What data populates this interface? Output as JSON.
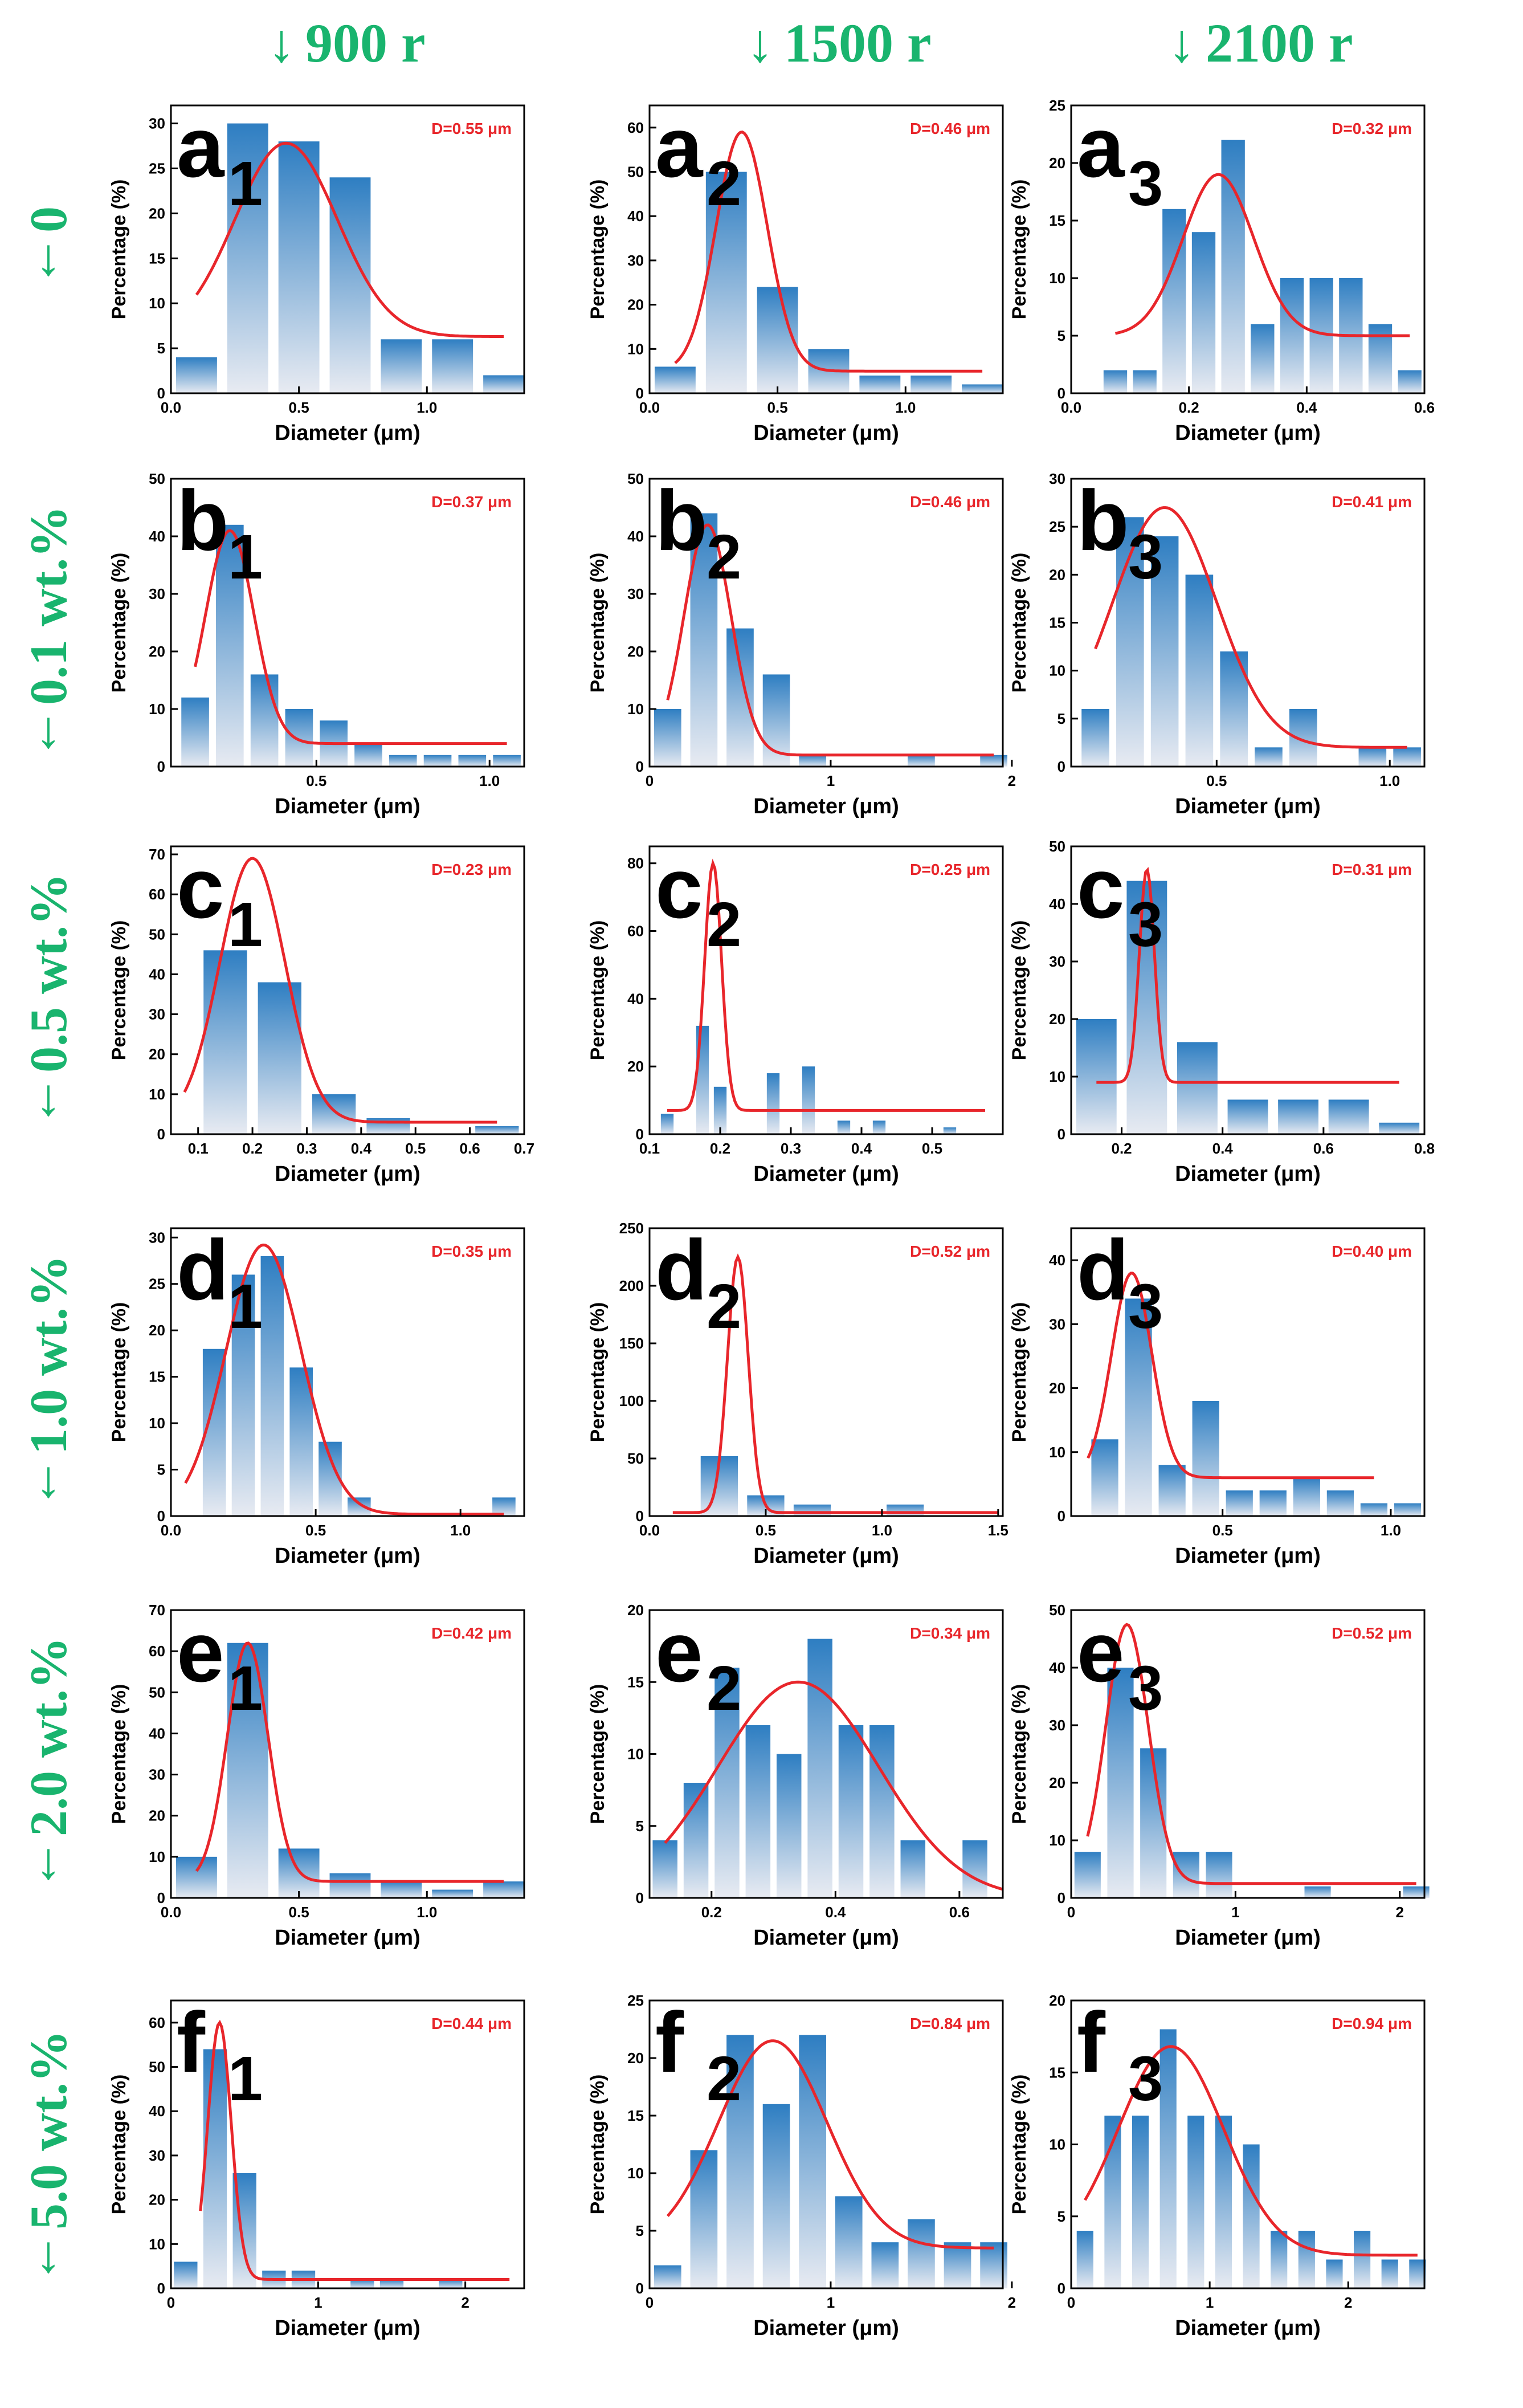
{
  "columns": [
    {
      "arrow": "↓",
      "label": "900 r"
    },
    {
      "arrow": "↓",
      "label": "1500 r"
    },
    {
      "arrow": "↓",
      "label": "2100 r"
    }
  ],
  "rows": [
    {
      "arrow": "↓",
      "label": "0"
    },
    {
      "arrow": "↓",
      "label": "0.1 wt.%"
    },
    {
      "arrow": "↓",
      "label": "0.5 wt.%"
    },
    {
      "arrow": "↓",
      "label": "1.0 wt.%"
    },
    {
      "arrow": "↓",
      "label": "2.0 wt.%"
    },
    {
      "arrow": "↓",
      "label": "5.0 wt.%"
    }
  ],
  "colors": {
    "label_green": "#19b46e",
    "fit_red": "#e8262b",
    "bar_top": "#2e7ec2",
    "bar_bottom": "#e8ebf2",
    "annotation_red": "#e8262b"
  },
  "chart_data": [
    {
      "type": "bar",
      "panel_letter": "a",
      "panel_sub": "1",
      "annotation": "D=0.55 μm",
      "xlabel": "Diameter (μm)",
      "ylabel": "Percentage (%)",
      "xlim": [
        0,
        1.38
      ],
      "ylim": [
        0,
        32
      ],
      "xticks": [
        0,
        0.5,
        1.0
      ],
      "xtick_labels": [
        "0.0",
        "0.5",
        "1.0"
      ],
      "yticks": [
        0,
        5,
        10,
        15,
        20,
        25,
        30
      ],
      "bar_width": 0.16,
      "x": [
        0.1,
        0.3,
        0.5,
        0.7,
        0.9,
        1.1,
        1.3
      ],
      "values": [
        4,
        30,
        28,
        24,
        6,
        6,
        2
      ],
      "fit": {
        "center": 0.45,
        "sigma": 0.2,
        "amplitude": 21.5,
        "baseline": 6.3,
        "x_range": [
          0.1,
          1.3
        ]
      }
    },
    {
      "type": "bar",
      "panel_letter": "a",
      "panel_sub": "2",
      "annotation": "D=0.46 μm",
      "xlabel": "Diameter (μm)",
      "ylabel": "Percentage (%)",
      "xlim": [
        0,
        1.38
      ],
      "ylim": [
        0,
        65
      ],
      "xticks": [
        0,
        0.5,
        1.0
      ],
      "xtick_labels": [
        "0.0",
        "0.5",
        "1.0"
      ],
      "yticks": [
        0,
        10,
        20,
        30,
        40,
        50,
        60
      ],
      "bar_width": 0.16,
      "x": [
        0.1,
        0.3,
        0.5,
        0.7,
        0.9,
        1.1,
        1.3
      ],
      "values": [
        6,
        50,
        24,
        10,
        4,
        4,
        2
      ],
      "fit": {
        "center": 0.36,
        "sigma": 0.1,
        "amplitude": 54,
        "baseline": 5,
        "x_range": [
          0.1,
          1.3
        ]
      }
    },
    {
      "type": "bar",
      "panel_letter": "a",
      "panel_sub": "3",
      "annotation": "D=0.32 μm",
      "xlabel": "Diameter (μm)",
      "ylabel": "Percentage (%)",
      "xlim": [
        0,
        0.6
      ],
      "ylim": [
        0,
        25
      ],
      "xticks": [
        0,
        0.2,
        0.4,
        0.6
      ],
      "xtick_labels": [
        "0.0",
        "0.2",
        "0.4",
        "0.6"
      ],
      "yticks": [
        0,
        5,
        10,
        15,
        20,
        25
      ],
      "bar_width": 0.04,
      "x": [
        0.075,
        0.125,
        0.175,
        0.225,
        0.275,
        0.325,
        0.375,
        0.425,
        0.475,
        0.525,
        0.575
      ],
      "values": [
        2,
        2,
        16,
        14,
        22,
        6,
        10,
        10,
        10,
        6,
        2
      ],
      "fit": {
        "center": 0.25,
        "sigma": 0.06,
        "amplitude": 14,
        "baseline": 5,
        "x_range": [
          0.075,
          0.575
        ]
      }
    },
    {
      "type": "bar",
      "panel_letter": "b",
      "panel_sub": "1",
      "annotation": "D=0.37 μm",
      "xlabel": "Diameter (μm)",
      "ylabel": "Percentage (%)",
      "xlim": [
        0.08,
        1.1
      ],
      "ylim": [
        0,
        50
      ],
      "xticks": [
        0.5,
        1.0
      ],
      "xtick_labels": [
        "0.5",
        "1.0"
      ],
      "yticks": [
        0,
        10,
        20,
        30,
        40,
        50
      ],
      "bar_width": 0.08,
      "x": [
        0.15,
        0.25,
        0.35,
        0.45,
        0.55,
        0.65,
        0.75,
        0.85,
        0.95,
        1.05
      ],
      "values": [
        12,
        42,
        16,
        10,
        8,
        4,
        2,
        2,
        2,
        2
      ],
      "fit": {
        "center": 0.25,
        "sigma": 0.07,
        "amplitude": 37,
        "baseline": 4,
        "x_range": [
          0.15,
          1.05
        ]
      }
    },
    {
      "type": "bar",
      "panel_letter": "b",
      "panel_sub": "2",
      "annotation": "D=0.46 μm",
      "xlabel": "Diameter (μm)",
      "ylabel": "Percentage (%)",
      "xlim": [
        0,
        1.95
      ],
      "ylim": [
        0,
        50
      ],
      "xticks": [
        0,
        1,
        2
      ],
      "xtick_labels": [
        "0",
        "1",
        "2"
      ],
      "yticks": [
        0,
        10,
        20,
        30,
        40,
        50
      ],
      "bar_width": 0.15,
      "x": [
        0.1,
        0.3,
        0.5,
        0.7,
        0.9,
        1.5,
        1.9
      ],
      "values": [
        10,
        44,
        24,
        16,
        2,
        2,
        2
      ],
      "fit": {
        "center": 0.32,
        "sigma": 0.13,
        "amplitude": 40,
        "baseline": 2,
        "x_range": [
          0.1,
          1.9
        ]
      }
    },
    {
      "type": "bar",
      "panel_letter": "b",
      "panel_sub": "3",
      "annotation": "D=0.41 μm",
      "xlabel": "Diameter (μm)",
      "ylabel": "Percentage (%)",
      "xlim": [
        0.08,
        1.1
      ],
      "ylim": [
        0,
        30
      ],
      "xticks": [
        0.5,
        1.0
      ],
      "xtick_labels": [
        "0.5",
        "1.0"
      ],
      "yticks": [
        0,
        5,
        10,
        15,
        20,
        25,
        30
      ],
      "bar_width": 0.08,
      "x": [
        0.15,
        0.25,
        0.35,
        0.45,
        0.55,
        0.65,
        0.75,
        0.85,
        0.95,
        1.05
      ],
      "values": [
        6,
        26,
        24,
        20,
        12,
        2,
        6,
        0,
        2,
        2
      ],
      "fit": {
        "center": 0.35,
        "sigma": 0.15,
        "amplitude": 25,
        "baseline": 2,
        "x_range": [
          0.15,
          1.05
        ]
      }
    },
    {
      "type": "bar",
      "panel_letter": "c",
      "panel_sub": "1",
      "annotation": "D=0.23 μm",
      "xlabel": "Diameter (μm)",
      "ylabel": "Percentage (%)",
      "xlim": [
        0.05,
        0.7
      ],
      "ylim": [
        0,
        72
      ],
      "xticks": [
        0.1,
        0.2,
        0.3,
        0.4,
        0.5,
        0.6,
        0.7
      ],
      "xtick_labels": [
        "0.1",
        "0.2",
        "0.3",
        "0.4",
        "0.5",
        "0.6",
        "0.7"
      ],
      "yticks": [
        0,
        10,
        20,
        30,
        40,
        50,
        60,
        70
      ],
      "bar_width": 0.08,
      "x": [
        0.15,
        0.25,
        0.35,
        0.45,
        0.55,
        0.65
      ],
      "values": [
        46,
        38,
        10,
        4,
        0,
        2
      ],
      "fit": {
        "center": 0.2,
        "sigma": 0.06,
        "amplitude": 66,
        "baseline": 3,
        "x_range": [
          0.075,
          0.65
        ]
      }
    },
    {
      "type": "bar",
      "panel_letter": "c",
      "panel_sub": "2",
      "annotation": "D=0.25 μm",
      "xlabel": "Diameter (μm)",
      "ylabel": "Percentage (%)",
      "xlim": [
        0.1,
        0.6
      ],
      "ylim": [
        0,
        85
      ],
      "xticks": [
        0.1,
        0.2,
        0.3,
        0.4,
        0.5
      ],
      "xtick_labels": [
        "0.1",
        "0.2",
        "0.3",
        "0.4",
        "0.5"
      ],
      "yticks": [
        0,
        20,
        40,
        60,
        80
      ],
      "bar_width": 0.018,
      "x": [
        0.125,
        0.175,
        0.2,
        0.275,
        0.325,
        0.375,
        0.425,
        0.525
      ],
      "values": [
        6,
        32,
        14,
        18,
        20,
        4,
        4,
        2
      ],
      "fit": {
        "center": 0.19,
        "sigma": 0.012,
        "amplitude": 73,
        "baseline": 7,
        "x_range": [
          0.125,
          0.575
        ]
      }
    },
    {
      "type": "bar",
      "panel_letter": "c",
      "panel_sub": "3",
      "annotation": "D=0.31 μm",
      "xlabel": "Diameter (μm)",
      "ylabel": "Percentage (%)",
      "xlim": [
        0.1,
        0.8
      ],
      "ylim": [
        0,
        50
      ],
      "xticks": [
        0.2,
        0.4,
        0.6,
        0.8
      ],
      "xtick_labels": [
        "0.2",
        "0.4",
        "0.6",
        "0.8"
      ],
      "yticks": [
        0,
        10,
        20,
        30,
        40,
        50
      ],
      "bar_width": 0.08,
      "x": [
        0.15,
        0.25,
        0.35,
        0.45,
        0.55,
        0.65,
        0.75
      ],
      "values": [
        20,
        44,
        16,
        6,
        6,
        6,
        2
      ],
      "fit": {
        "center": 0.25,
        "sigma": 0.015,
        "amplitude": 37,
        "baseline": 9,
        "x_range": [
          0.15,
          0.75
        ]
      }
    },
    {
      "type": "bar",
      "panel_letter": "d",
      "panel_sub": "1",
      "annotation": "D=0.35 μm",
      "xlabel": "Diameter (μm)",
      "ylabel": "Percentage (%)",
      "xlim": [
        0,
        1.22
      ],
      "ylim": [
        0,
        31
      ],
      "xticks": [
        0,
        0.5,
        1.0
      ],
      "xtick_labels": [
        "0.0",
        "0.5",
        "1.0"
      ],
      "yticks": [
        0,
        5,
        10,
        15,
        20,
        25,
        30
      ],
      "bar_width": 0.08,
      "x": [
        0.15,
        0.25,
        0.35,
        0.45,
        0.55,
        0.65,
        1.15
      ],
      "values": [
        18,
        26,
        28,
        16,
        8,
        2,
        2
      ],
      "fit": {
        "center": 0.32,
        "sigma": 0.13,
        "amplitude": 29,
        "baseline": 0.2,
        "x_range": [
          0.05,
          1.15
        ]
      }
    },
    {
      "type": "bar",
      "panel_letter": "d",
      "panel_sub": "2",
      "annotation": "D=0.52 μm",
      "xlabel": "Diameter (μm)",
      "ylabel": "Percentage (%)",
      "xlim": [
        0,
        1.52
      ],
      "ylim": [
        0,
        250
      ],
      "xticks": [
        0,
        0.5,
        1.0,
        1.5
      ],
      "xtick_labels": [
        "0.0",
        "0.5",
        "1.0",
        "1.5"
      ],
      "yticks": [
        0,
        50,
        100,
        150,
        200,
        250
      ],
      "bar_width": 0.16,
      "x": [
        0.3,
        0.5,
        0.7,
        1.1
      ],
      "values": [
        52,
        18,
        10,
        10
      ],
      "fit": {
        "center": 0.38,
        "sigma": 0.045,
        "amplitude": 222,
        "baseline": 3,
        "x_range": [
          0.1,
          1.5
        ]
      }
    },
    {
      "type": "bar",
      "panel_letter": "d",
      "panel_sub": "3",
      "annotation": "D=0.40 μm",
      "xlabel": "Diameter (μm)",
      "ylabel": "Percentage (%)",
      "xlim": [
        0.05,
        1.1
      ],
      "ylim": [
        0,
        45
      ],
      "xticks": [
        0.5,
        1.0
      ],
      "xtick_labels": [
        "0.5",
        "1.0"
      ],
      "yticks": [
        0,
        10,
        20,
        30,
        40
      ],
      "bar_width": 0.08,
      "x": [
        0.15,
        0.25,
        0.35,
        0.45,
        0.55,
        0.65,
        0.75,
        0.85,
        0.95,
        1.05
      ],
      "values": [
        12,
        34,
        8,
        18,
        4,
        4,
        6,
        4,
        2,
        2
      ],
      "fit": {
        "center": 0.23,
        "sigma": 0.06,
        "amplitude": 32,
        "baseline": 6,
        "x_range": [
          0.1,
          0.95
        ]
      }
    },
    {
      "type": "bar",
      "panel_letter": "e",
      "panel_sub": "1",
      "annotation": "D=0.42 μm",
      "xlabel": "Diameter (μm)",
      "ylabel": "Percentage (%)",
      "xlim": [
        0,
        1.38
      ],
      "ylim": [
        0,
        70
      ],
      "xticks": [
        0,
        0.5,
        1.0
      ],
      "xtick_labels": [
        "0.0",
        "0.5",
        "1.0"
      ],
      "yticks": [
        0,
        10,
        20,
        30,
        40,
        50,
        60,
        70
      ],
      "bar_width": 0.16,
      "x": [
        0.1,
        0.3,
        0.5,
        0.7,
        0.9,
        1.1,
        1.3
      ],
      "values": [
        10,
        62,
        12,
        6,
        4,
        2,
        4
      ],
      "fit": {
        "center": 0.3,
        "sigma": 0.08,
        "amplitude": 58,
        "baseline": 4,
        "x_range": [
          0.1,
          1.3
        ]
      }
    },
    {
      "type": "bar",
      "panel_letter": "e",
      "panel_sub": "2",
      "annotation": "D=0.34 μm",
      "xlabel": "Diameter (μm)",
      "ylabel": "Percentage (%)",
      "xlim": [
        0.1,
        0.67
      ],
      "ylim": [
        0,
        20
      ],
      "xticks": [
        0.2,
        0.4,
        0.6
      ],
      "xtick_labels": [
        "0.2",
        "0.4",
        "0.6"
      ],
      "yticks": [
        0,
        5,
        10,
        15,
        20
      ],
      "bar_width": 0.04,
      "x": [
        0.125,
        0.175,
        0.225,
        0.275,
        0.325,
        0.375,
        0.425,
        0.475,
        0.525,
        0.625
      ],
      "values": [
        4,
        8,
        16,
        12,
        10,
        18,
        12,
        12,
        4,
        4
      ],
      "fit": {
        "center": 0.34,
        "sigma": 0.13,
        "amplitude": 15,
        "baseline": 0,
        "x_range": [
          0.125,
          0.67
        ]
      }
    },
    {
      "type": "bar",
      "panel_letter": "e",
      "panel_sub": "3",
      "annotation": "D=0.52 μm",
      "xlabel": "Diameter (μm)",
      "ylabel": "Percentage (%)",
      "xlim": [
        0,
        2.15
      ],
      "ylim": [
        0,
        50
      ],
      "xticks": [
        0,
        1,
        2
      ],
      "xtick_labels": [
        "0",
        "1",
        "2"
      ],
      "yticks": [
        0,
        10,
        20,
        30,
        40,
        50
      ],
      "bar_width": 0.16,
      "x": [
        0.1,
        0.3,
        0.5,
        0.7,
        0.9,
        1.5,
        2.1
      ],
      "values": [
        8,
        40,
        26,
        8,
        8,
        2,
        2
      ],
      "fit": {
        "center": 0.34,
        "sigma": 0.13,
        "amplitude": 45,
        "baseline": 2.5,
        "x_range": [
          0.1,
          2.1
        ]
      }
    },
    {
      "type": "bar",
      "panel_letter": "f",
      "panel_sub": "1",
      "annotation": "D=0.44 μm",
      "xlabel": "Diameter (μm)",
      "ylabel": "Percentage (%)",
      "xlim": [
        0,
        2.4
      ],
      "ylim": [
        0,
        65
      ],
      "xticks": [
        0,
        1,
        2
      ],
      "xtick_labels": [
        "0",
        "1",
        "2"
      ],
      "yticks": [
        0,
        10,
        20,
        30,
        40,
        50,
        60
      ],
      "bar_width": 0.16,
      "x": [
        0.1,
        0.3,
        0.5,
        0.7,
        0.9,
        1.3,
        1.5,
        1.9
      ],
      "values": [
        6,
        54,
        26,
        4,
        4,
        2,
        2,
        2
      ],
      "fit": {
        "center": 0.33,
        "sigma": 0.08,
        "amplitude": 58,
        "baseline": 2,
        "x_range": [
          0.2,
          2.3
        ]
      }
    },
    {
      "type": "bar",
      "panel_letter": "f",
      "panel_sub": "2",
      "annotation": "D=0.84 μm",
      "xlabel": "Diameter (μm)",
      "ylabel": "Percentage (%)",
      "xlim": [
        0,
        1.95
      ],
      "ylim": [
        0,
        25
      ],
      "xticks": [
        0,
        1,
        2
      ],
      "xtick_labels": [
        "0",
        "1",
        "2"
      ],
      "yticks": [
        0,
        5,
        10,
        15,
        20,
        25
      ],
      "bar_width": 0.15,
      "x": [
        0.1,
        0.3,
        0.5,
        0.7,
        0.9,
        1.1,
        1.3,
        1.5,
        1.7,
        1.9
      ],
      "values": [
        2,
        12,
        22,
        16,
        22,
        8,
        4,
        6,
        4,
        4
      ],
      "fit": {
        "center": 0.68,
        "sigma": 0.3,
        "amplitude": 18,
        "baseline": 3.5,
        "x_range": [
          0.1,
          1.9
        ]
      }
    },
    {
      "type": "bar",
      "panel_letter": "f",
      "panel_sub": "3",
      "annotation": "D=0.94 μm",
      "xlabel": "Diameter (μm)",
      "ylabel": "Percentage (%)",
      "xlim": [
        0,
        2.55
      ],
      "ylim": [
        0,
        20
      ],
      "xticks": [
        0,
        1,
        2
      ],
      "xtick_labels": [
        "0",
        "1",
        "2"
      ],
      "yticks": [
        0,
        5,
        10,
        15,
        20
      ],
      "bar_width": 0.12,
      "x": [
        0.1,
        0.3,
        0.5,
        0.7,
        0.9,
        1.1,
        1.3,
        1.5,
        1.7,
        1.9,
        2.1,
        2.3,
        2.5
      ],
      "values": [
        4,
        12,
        12,
        18,
        12,
        12,
        10,
        4,
        4,
        2,
        4,
        2,
        2
      ],
      "fit": {
        "center": 0.72,
        "sigma": 0.38,
        "amplitude": 14.5,
        "baseline": 2.3,
        "x_range": [
          0.1,
          2.5
        ]
      }
    }
  ]
}
